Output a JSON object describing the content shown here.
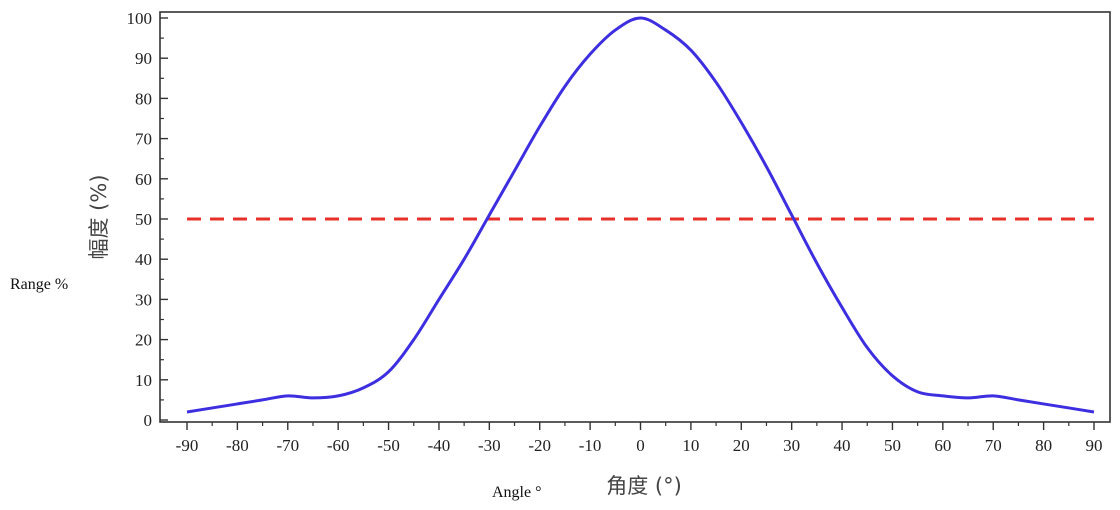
{
  "side_label_y": "Range %",
  "side_label_x": "Angle °",
  "colors": {
    "curve": "#3d2fe0",
    "threshold": "#e8302a",
    "axis": "#333333"
  },
  "chart_data": {
    "type": "line",
    "title": "",
    "xlabel": "角度 (°)",
    "ylabel": "幅度 (%)",
    "xlim": [
      -90,
      90
    ],
    "ylim": [
      0,
      100
    ],
    "x_ticks": [
      -90,
      -80,
      -70,
      -60,
      -50,
      -40,
      -30,
      -20,
      -10,
      0,
      10,
      20,
      30,
      40,
      50,
      60,
      70,
      80,
      90
    ],
    "y_ticks": [
      0,
      10,
      20,
      30,
      40,
      50,
      60,
      70,
      80,
      90,
      100
    ],
    "grid": false,
    "series": [
      {
        "x": [
          -90,
          -85,
          -80,
          -75,
          -70,
          -65,
          -60,
          -55,
          -50,
          -45,
          -40,
          -35,
          -30,
          -25,
          -20,
          -15,
          -10,
          -5,
          0,
          5,
          10,
          15,
          20,
          25,
          30,
          35,
          40,
          45,
          50,
          55,
          60,
          65,
          70,
          75,
          80,
          85,
          90
        ],
        "y": [
          2,
          3,
          4,
          5,
          6,
          5.5,
          6,
          8,
          12,
          20,
          30,
          40,
          51,
          62,
          73,
          83,
          91,
          97,
          100,
          97,
          92,
          84,
          74,
          63,
          51,
          39,
          28,
          18,
          11,
          7,
          6,
          5.5,
          6,
          5,
          4,
          3,
          2
        ]
      }
    ],
    "reference_lines": [
      {
        "axis": "y",
        "value": 50,
        "style": "dashed"
      }
    ]
  }
}
